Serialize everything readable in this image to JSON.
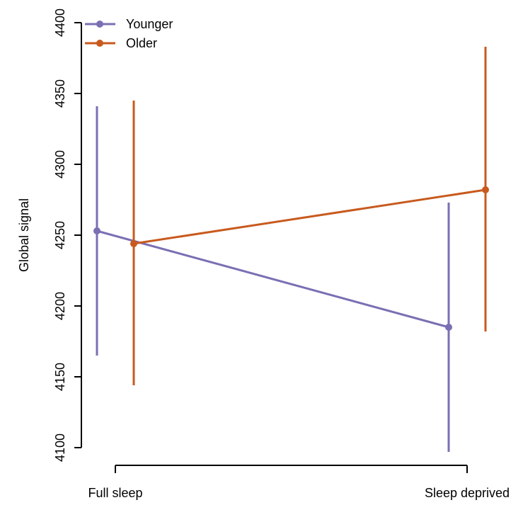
{
  "chart_data": {
    "type": "line",
    "title": "",
    "xlabel": "",
    "ylabel": "Global signal",
    "categories": [
      "Full sleep",
      "Sleep deprived"
    ],
    "ylim": [
      4100,
      4400
    ],
    "yticks": [
      4100,
      4150,
      4200,
      4250,
      4300,
      4350,
      4400
    ],
    "grid": false,
    "legend_position": "top-left",
    "series": [
      {
        "name": "Younger",
        "color": "#7b6fb3",
        "values": [
          4253,
          4185
        ],
        "lower": [
          4165,
          4097
        ],
        "upper": [
          4341,
          4273
        ]
      },
      {
        "name": "Older",
        "color": "#c85a1e",
        "values": [
          4244,
          4282
        ],
        "lower": [
          4144,
          4182
        ],
        "upper": [
          4345,
          4383
        ]
      }
    ]
  }
}
